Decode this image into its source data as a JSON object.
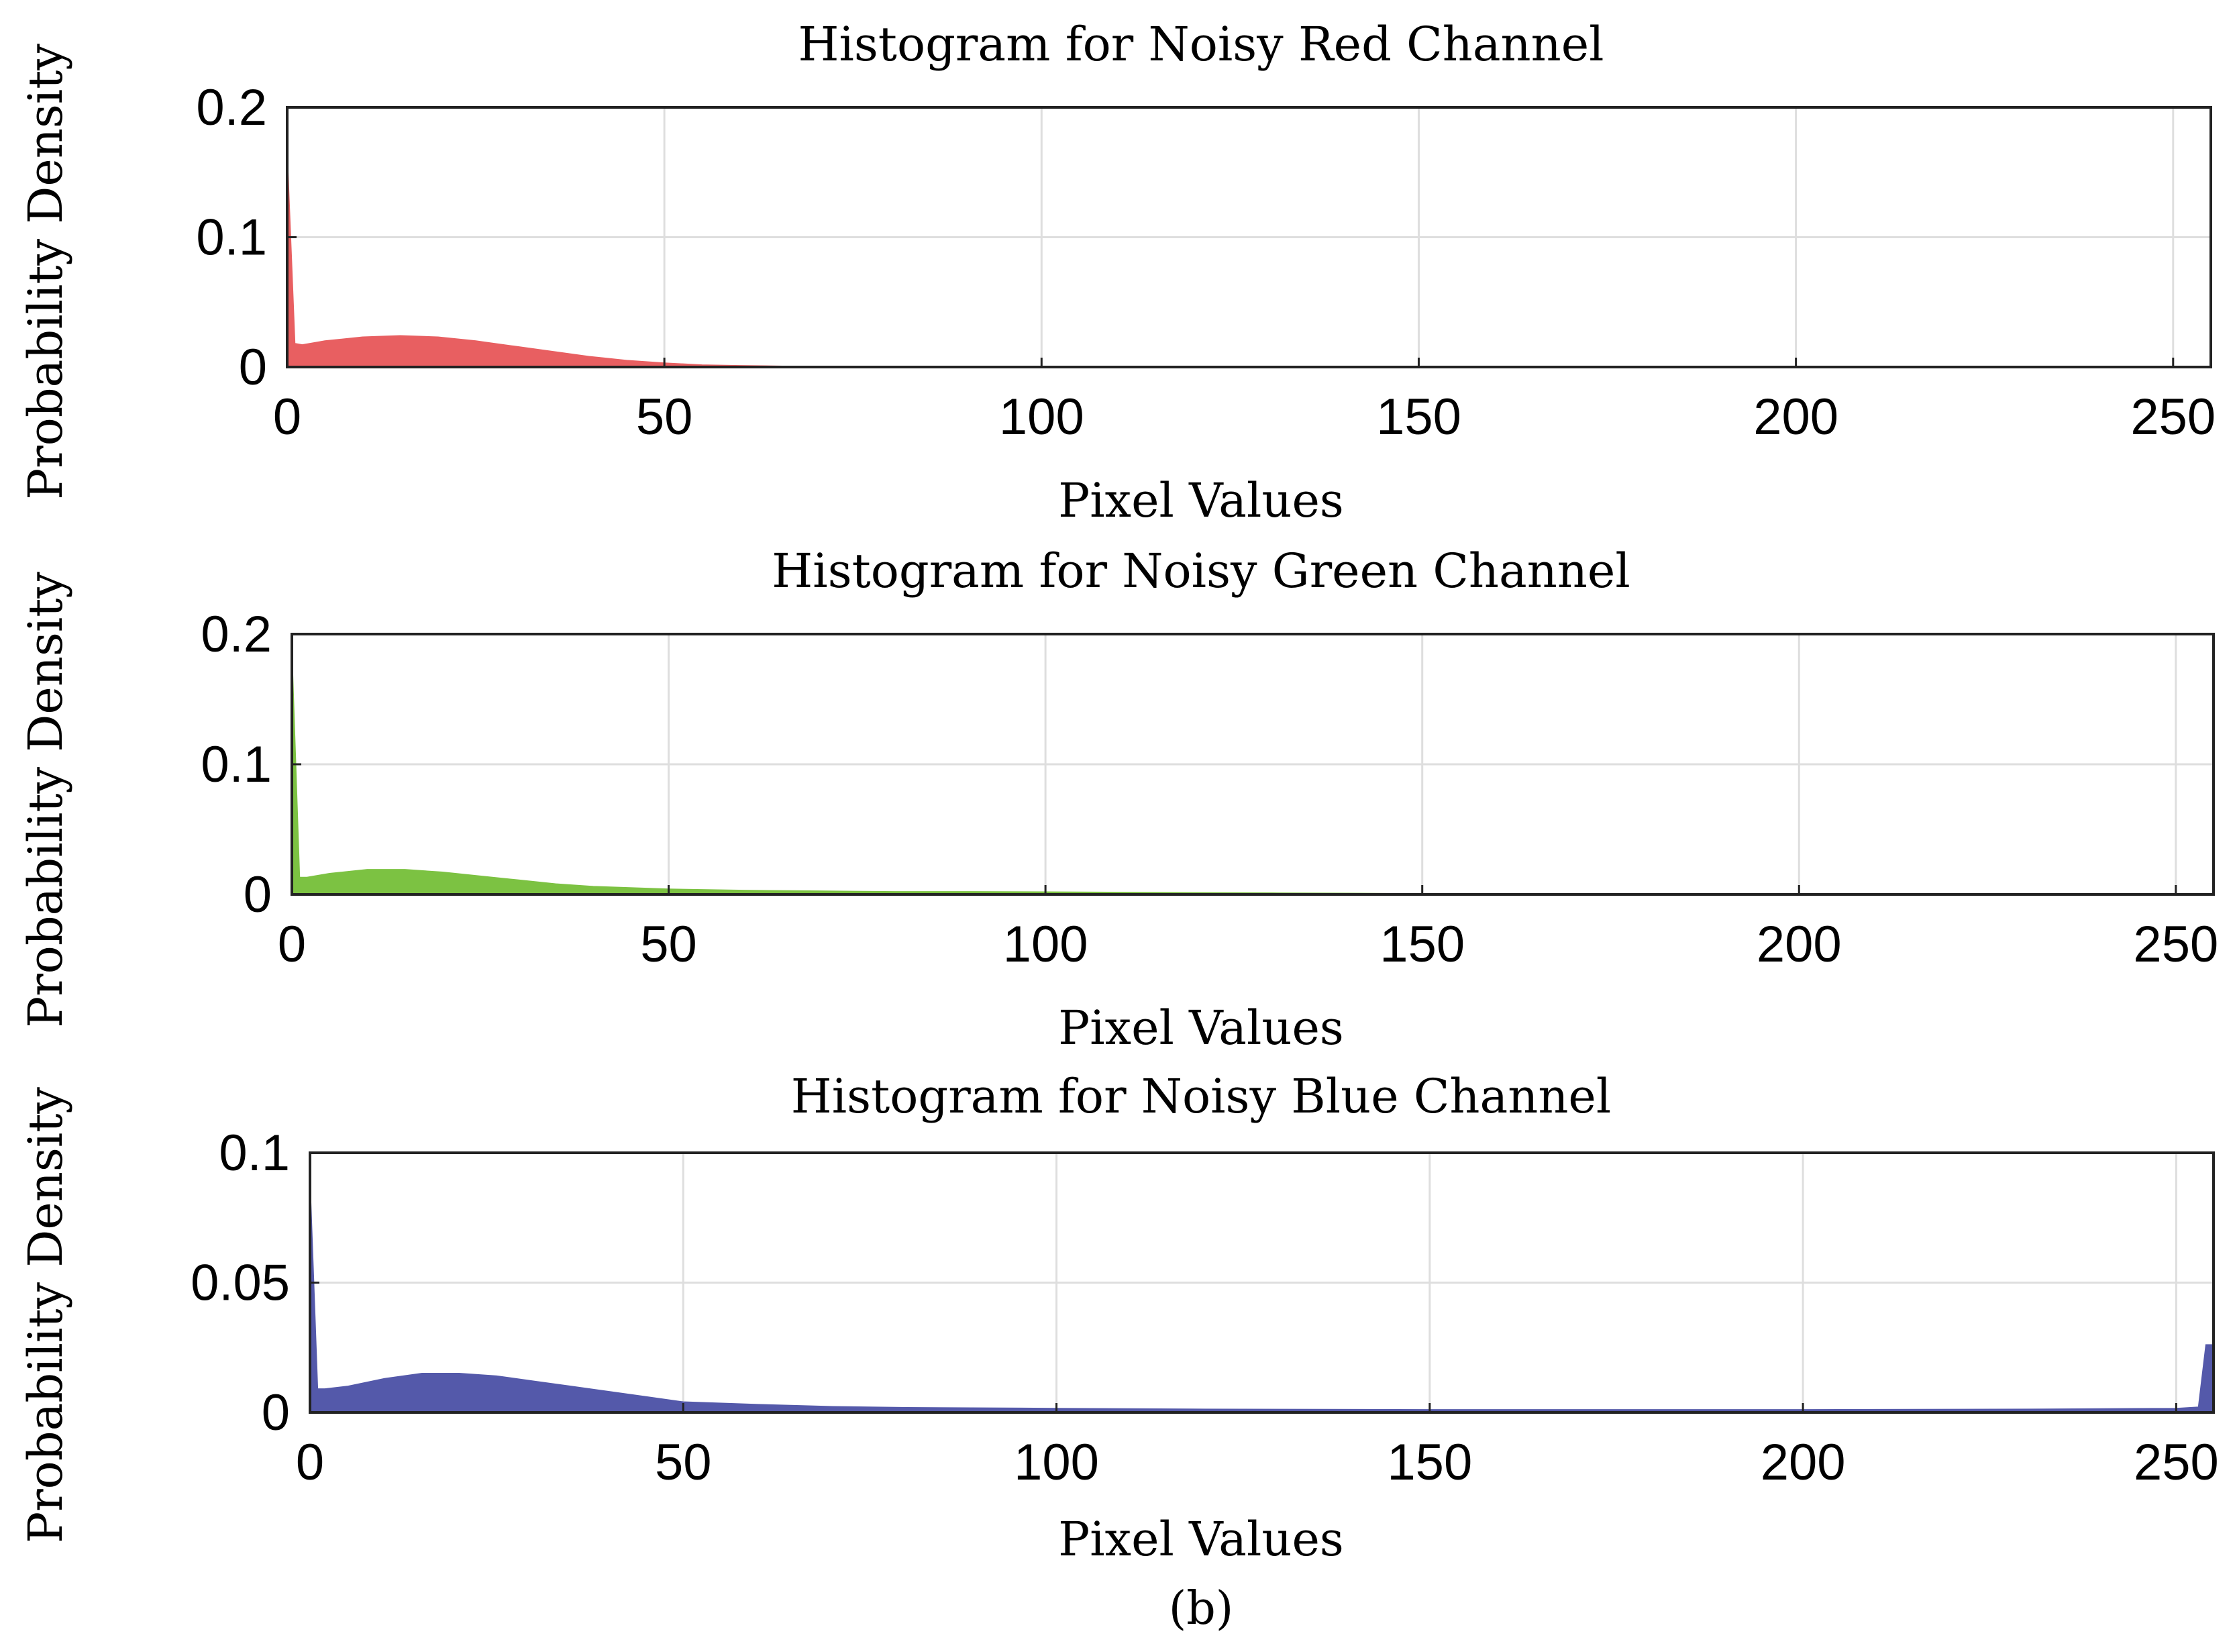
{
  "figure_label": "(b)",
  "chart_data": [
    {
      "type": "area",
      "title": "Histogram for Noisy Red Channel",
      "xlabel": "Pixel Values",
      "ylabel": "Probability Density",
      "xlim": [
        0,
        255
      ],
      "ylim": [
        0,
        0.2
      ],
      "xticks": [
        0,
        50,
        100,
        150,
        200,
        250
      ],
      "yticks": [
        0,
        0.1,
        0.2
      ],
      "ytick_labels": [
        "0",
        "0.1",
        "0.2"
      ],
      "grid": true,
      "color": "#e85f61",
      "x": [
        0,
        1,
        2,
        5,
        10,
        15,
        20,
        25,
        30,
        35,
        40,
        45,
        50,
        55,
        60,
        65,
        67,
        70,
        255
      ],
      "values": [
        0.163,
        0.018,
        0.017,
        0.02,
        0.023,
        0.024,
        0.023,
        0.02,
        0.016,
        0.012,
        0.008,
        0.005,
        0.003,
        0.0015,
        0.001,
        0.0006,
        0.0004,
        0.0002,
        0
      ]
    },
    {
      "type": "area",
      "title": "Histogram for Noisy Green Channel",
      "xlabel": "Pixel Values",
      "ylabel": "Probability Density",
      "xlim": [
        0,
        255
      ],
      "ylim": [
        0,
        0.2
      ],
      "xticks": [
        0,
        50,
        100,
        150,
        200,
        250
      ],
      "yticks": [
        0,
        0.1,
        0.2
      ],
      "ytick_labels": [
        "0",
        "0.1",
        "0.2"
      ],
      "grid": true,
      "color": "#7cc242",
      "x": [
        0,
        1,
        2,
        5,
        10,
        15,
        20,
        25,
        30,
        35,
        40,
        50,
        60,
        70,
        80,
        90,
        100,
        110,
        120,
        130,
        140,
        147,
        150,
        255
      ],
      "values": [
        0.184,
        0.013,
        0.013,
        0.016,
        0.019,
        0.019,
        0.017,
        0.014,
        0.011,
        0.008,
        0.006,
        0.004,
        0.003,
        0.0025,
        0.002,
        0.002,
        0.0018,
        0.0015,
        0.0012,
        0.001,
        0.0008,
        0.0005,
        0,
        0
      ]
    },
    {
      "type": "area",
      "title": "Histogram for Noisy Blue Channel",
      "xlabel": "Pixel Values",
      "ylabel": "Probability Density",
      "xlim": [
        0,
        255
      ],
      "ylim": [
        0,
        0.1
      ],
      "xticks": [
        0,
        50,
        100,
        150,
        200,
        250
      ],
      "yticks": [
        0,
        0.05,
        0.1
      ],
      "ytick_labels": [
        "0",
        "0.05",
        "0.1"
      ],
      "grid": true,
      "color": "#5459aa",
      "x": [
        0,
        1,
        2,
        5,
        10,
        15,
        20,
        25,
        30,
        35,
        40,
        45,
        50,
        60,
        70,
        80,
        100,
        120,
        150,
        200,
        230,
        250,
        253,
        254,
        255
      ],
      "values": [
        0.088,
        0.009,
        0.009,
        0.01,
        0.013,
        0.015,
        0.015,
        0.014,
        0.012,
        0.01,
        0.008,
        0.006,
        0.004,
        0.003,
        0.0022,
        0.0018,
        0.0015,
        0.0012,
        0.001,
        0.001,
        0.0012,
        0.0015,
        0.002,
        0.026,
        0.026
      ]
    }
  ]
}
